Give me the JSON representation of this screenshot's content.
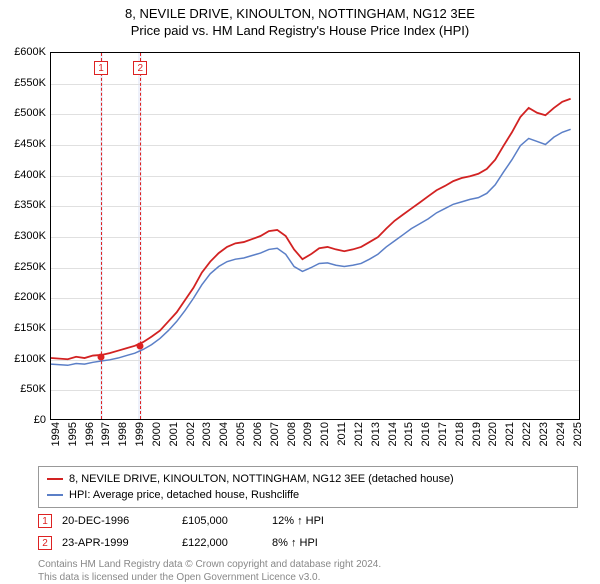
{
  "title": "8, NEVILE DRIVE, KINOULTON, NOTTINGHAM, NG12 3EE",
  "subtitle": "Price paid vs. HM Land Registry's House Price Index (HPI)",
  "chart": {
    "type": "line",
    "xlim": [
      1994,
      2025.5
    ],
    "ylim": [
      0,
      600
    ],
    "ytick_step": 50,
    "ytick_prefix": "£",
    "ytick_suffix": "K",
    "xtick_step": 1,
    "background_color": "#ffffff",
    "grid_color": "#e0e0e0",
    "axis_fontsize": 11,
    "vertical_bands": [
      {
        "from": 1996.9,
        "to": 1997.1,
        "color": "#eef1fa"
      },
      {
        "from": 1999.2,
        "to": 1999.4,
        "color": "#eef1fa"
      }
    ],
    "vertical_markers": [
      {
        "x": 1996.97,
        "label": "1",
        "color": "#d22"
      },
      {
        "x": 1999.31,
        "label": "2",
        "color": "#d22"
      }
    ],
    "points": [
      {
        "x": 1996.97,
        "y": 105,
        "color": "#d22"
      },
      {
        "x": 1999.31,
        "y": 122,
        "color": "#d22"
      }
    ],
    "series": [
      {
        "name": "price-paid",
        "label": "8, NEVILE DRIVE, KINOULTON, NOTTINGHAM, NG12 3EE (detached house)",
        "color": "#d22222",
        "line_width": 1.8,
        "data": [
          [
            1994,
            100
          ],
          [
            1995,
            98
          ],
          [
            1995.5,
            102
          ],
          [
            1996,
            100
          ],
          [
            1996.5,
            104
          ],
          [
            1997,
            105
          ],
          [
            1997.5,
            108
          ],
          [
            1998,
            112
          ],
          [
            1998.5,
            116
          ],
          [
            1999,
            120
          ],
          [
            1999.5,
            126
          ],
          [
            2000,
            135
          ],
          [
            2000.5,
            145
          ],
          [
            2001,
            160
          ],
          [
            2001.5,
            175
          ],
          [
            2002,
            195
          ],
          [
            2002.5,
            215
          ],
          [
            2003,
            240
          ],
          [
            2003.5,
            258
          ],
          [
            2004,
            272
          ],
          [
            2004.5,
            282
          ],
          [
            2005,
            288
          ],
          [
            2005.5,
            290
          ],
          [
            2006,
            295
          ],
          [
            2006.5,
            300
          ],
          [
            2007,
            308
          ],
          [
            2007.5,
            310
          ],
          [
            2008,
            300
          ],
          [
            2008.5,
            278
          ],
          [
            2009,
            262
          ],
          [
            2009.5,
            270
          ],
          [
            2010,
            280
          ],
          [
            2010.5,
            282
          ],
          [
            2011,
            278
          ],
          [
            2011.5,
            275
          ],
          [
            2012,
            278
          ],
          [
            2012.5,
            282
          ],
          [
            2013,
            290
          ],
          [
            2013.5,
            298
          ],
          [
            2014,
            312
          ],
          [
            2014.5,
            325
          ],
          [
            2015,
            335
          ],
          [
            2015.5,
            345
          ],
          [
            2016,
            355
          ],
          [
            2016.5,
            365
          ],
          [
            2017,
            375
          ],
          [
            2017.5,
            382
          ],
          [
            2018,
            390
          ],
          [
            2018.5,
            395
          ],
          [
            2019,
            398
          ],
          [
            2019.5,
            402
          ],
          [
            2020,
            410
          ],
          [
            2020.5,
            425
          ],
          [
            2021,
            448
          ],
          [
            2021.5,
            470
          ],
          [
            2022,
            495
          ],
          [
            2022.5,
            510
          ],
          [
            2023,
            502
          ],
          [
            2023.5,
            498
          ],
          [
            2024,
            510
          ],
          [
            2024.5,
            520
          ],
          [
            2025,
            525
          ]
        ]
      },
      {
        "name": "hpi",
        "label": "HPI: Average price, detached house, Rushcliffe",
        "color": "#5b7fc7",
        "line_width": 1.5,
        "data": [
          [
            1994,
            90
          ],
          [
            1995,
            88
          ],
          [
            1995.5,
            91
          ],
          [
            1996,
            90
          ],
          [
            1996.5,
            93
          ],
          [
            1997,
            95
          ],
          [
            1997.5,
            97
          ],
          [
            1998,
            100
          ],
          [
            1998.5,
            104
          ],
          [
            1999,
            108
          ],
          [
            1999.5,
            114
          ],
          [
            2000,
            122
          ],
          [
            2000.5,
            132
          ],
          [
            2001,
            145
          ],
          [
            2001.5,
            160
          ],
          [
            2002,
            178
          ],
          [
            2002.5,
            198
          ],
          [
            2003,
            220
          ],
          [
            2003.5,
            238
          ],
          [
            2004,
            250
          ],
          [
            2004.5,
            258
          ],
          [
            2005,
            262
          ],
          [
            2005.5,
            264
          ],
          [
            2006,
            268
          ],
          [
            2006.5,
            272
          ],
          [
            2007,
            278
          ],
          [
            2007.5,
            280
          ],
          [
            2008,
            270
          ],
          [
            2008.5,
            250
          ],
          [
            2009,
            242
          ],
          [
            2009.5,
            248
          ],
          [
            2010,
            255
          ],
          [
            2010.5,
            256
          ],
          [
            2011,
            252
          ],
          [
            2011.5,
            250
          ],
          [
            2012,
            252
          ],
          [
            2012.5,
            255
          ],
          [
            2013,
            262
          ],
          [
            2013.5,
            270
          ],
          [
            2014,
            282
          ],
          [
            2014.5,
            292
          ],
          [
            2015,
            302
          ],
          [
            2015.5,
            312
          ],
          [
            2016,
            320
          ],
          [
            2016.5,
            328
          ],
          [
            2017,
            338
          ],
          [
            2017.5,
            345
          ],
          [
            2018,
            352
          ],
          [
            2018.5,
            356
          ],
          [
            2019,
            360
          ],
          [
            2019.5,
            363
          ],
          [
            2020,
            370
          ],
          [
            2020.5,
            384
          ],
          [
            2021,
            405
          ],
          [
            2021.5,
            425
          ],
          [
            2022,
            448
          ],
          [
            2022.5,
            460
          ],
          [
            2023,
            455
          ],
          [
            2023.5,
            450
          ],
          [
            2024,
            462
          ],
          [
            2024.5,
            470
          ],
          [
            2025,
            475
          ]
        ]
      }
    ]
  },
  "events": [
    {
      "badge": "1",
      "date": "20-DEC-1996",
      "price": "£105,000",
      "delta": "12% ↑ HPI"
    },
    {
      "badge": "2",
      "date": "23-APR-1999",
      "price": "£122,000",
      "delta": "8% ↑ HPI"
    }
  ],
  "footnote_line1": "Contains HM Land Registry data © Crown copyright and database right 2024.",
  "footnote_line2": "This data is licensed under the Open Government Licence v3.0."
}
